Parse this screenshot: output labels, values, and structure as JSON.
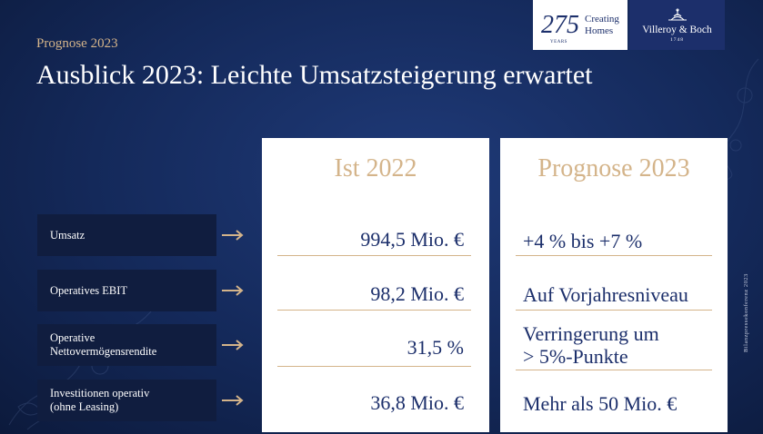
{
  "kicker": "Prognose 2023",
  "title": "Ausblick 2023: Leichte Umsatzsteigerung erwartet",
  "logo_anniversary": {
    "number": "275",
    "years": "YEARS",
    "line1": "Creating",
    "line2": "Homes"
  },
  "logo_brand": {
    "name": "Villeroy & Boch",
    "year": "1748"
  },
  "columns": {
    "ist": "Ist 2022",
    "prognose": "Prognose 2023"
  },
  "rows": [
    {
      "label": "Umsatz",
      "ist": "994,5 Mio. €",
      "prognose": "+4 % bis +7 %"
    },
    {
      "label": "Operatives EBIT",
      "ist": "98,2 Mio. €",
      "prognose": "Auf Vorjahresniveau"
    },
    {
      "label_line1": "Operative",
      "label_line2": "Nettovermögensrendite",
      "ist": "31,5 %",
      "prognose_line1": "Verringerung um",
      "prognose_line2": "> 5%-Punkte"
    },
    {
      "label_line1": "Investitionen operativ",
      "label_line2": "(ohne Leasing)",
      "ist": "36,8 Mio. €",
      "prognose": "Mehr als 50 Mio. €"
    }
  ],
  "side_text": "Bilanzpressekonferenz 2023",
  "colors": {
    "background": "#14295a",
    "gold": "#d4b48a",
    "navy": "#1c2f6b",
    "label_bg": "#101d3f"
  }
}
